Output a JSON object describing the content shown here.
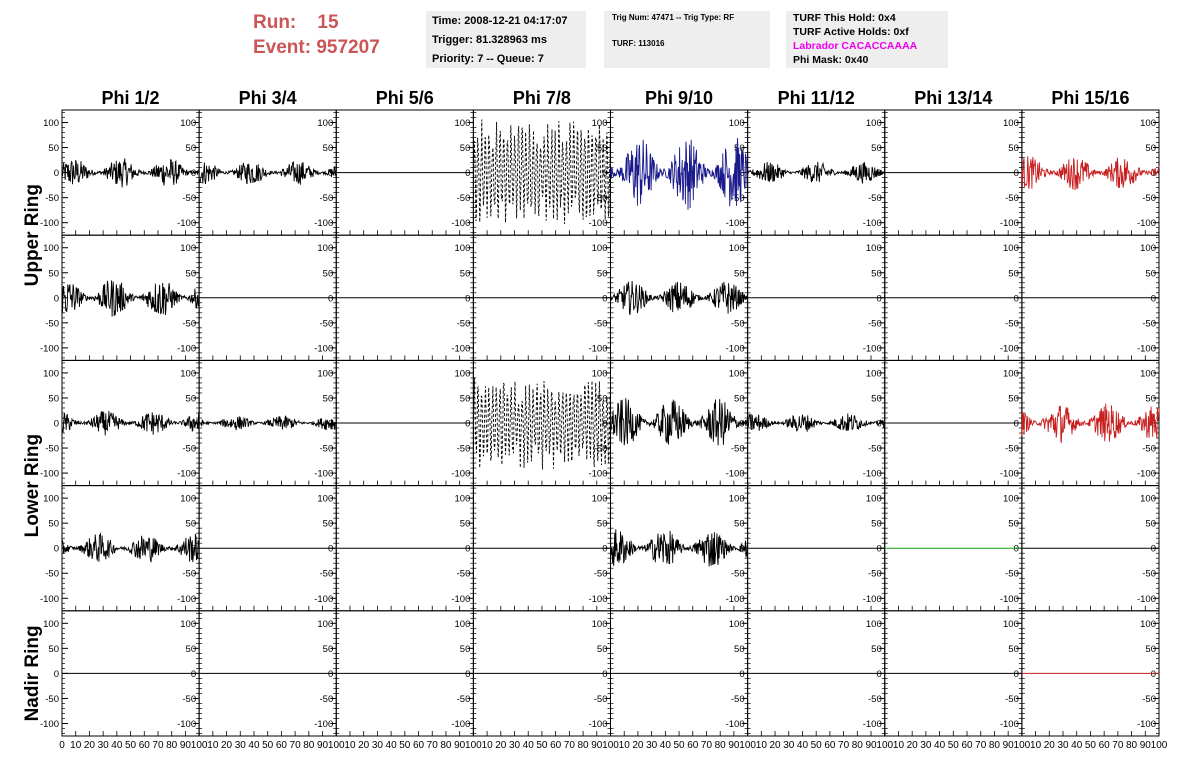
{
  "header": {
    "run_label": "Run:",
    "run_value": "15",
    "event_label": "Event:",
    "event_value": "957207",
    "time": "Time: 2008-12-21 04:17:07",
    "trigger": "Trigger: 81.328963 ms",
    "priority": "Priority: 7 -- Queue: 7",
    "trig_num": "Trig Num: 47471 -- Trig Type: RF",
    "turf": "TURF: 113016",
    "turf_this_hold": "TURF This Hold: 0x4",
    "turf_active_holds": "TURF Active Holds: 0xf",
    "labrador": "Labrador CACACCAAAA",
    "phi_mask": "Phi Mask: 0x40"
  },
  "colors": {
    "header_red": "#cc5555",
    "labrador_magenta": "#ee00ee",
    "trace_black": "#000000",
    "trace_blue": "#1a1a8c",
    "trace_red": "#c82020",
    "trace_green": "#10a010"
  },
  "chart_data": {
    "type": "line",
    "columns": [
      "Phi 1/2",
      "Phi 3/4",
      "Phi 5/6",
      "Phi 7/8",
      "Phi 9/10",
      "Phi 11/12",
      "Phi 13/14",
      "Phi 15/16"
    ],
    "rows": [
      "Upper Ring",
      "Upper Ring",
      "Lower Ring",
      "Lower Ring",
      "Nadir Ring"
    ],
    "row_labels": [
      "Upper Ring",
      "Lower Ring",
      "Nadir Ring"
    ],
    "xlim": [
      0,
      100
    ],
    "ylim": [
      -125,
      125
    ],
    "x_ticks": [
      "0",
      "10",
      "20",
      "30",
      "40",
      "50",
      "60",
      "70",
      "80",
      "90",
      "100"
    ],
    "y_ticks": [
      "100",
      "50",
      "0",
      "-50",
      "-100"
    ],
    "note": "Each panel shows a voltage waveform; amplitude is the approximate envelope in data units",
    "panels": [
      [
        {
          "amp": 30,
          "color": "black",
          "style": "solid"
        },
        {
          "amp": 25,
          "color": "black",
          "style": "solid"
        },
        {
          "amp": 0,
          "color": "black",
          "style": "solid"
        },
        {
          "amp": 110,
          "color": "black",
          "style": "dashed"
        },
        {
          "amp": 75,
          "color": "blue",
          "style": "solid"
        },
        {
          "amp": 22,
          "color": "black",
          "style": "solid"
        },
        {
          "amp": 0,
          "color": "black",
          "style": "solid"
        },
        {
          "amp": 35,
          "color": "red",
          "style": "solid"
        }
      ],
      [
        {
          "amp": 40,
          "color": "black",
          "style": "solid"
        },
        {
          "amp": 0,
          "color": "black",
          "style": "solid"
        },
        {
          "amp": 0,
          "color": "black",
          "style": "solid"
        },
        {
          "amp": 0,
          "color": "black",
          "style": "solid"
        },
        {
          "amp": 35,
          "color": "black",
          "style": "solid"
        },
        {
          "amp": 0,
          "color": "black",
          "style": "solid"
        },
        {
          "amp": 0,
          "color": "black",
          "style": "solid"
        },
        {
          "amp": 0,
          "color": "black",
          "style": "solid"
        }
      ],
      [
        {
          "amp": 25,
          "color": "black",
          "style": "solid"
        },
        {
          "amp": 15,
          "color": "black",
          "style": "solid"
        },
        {
          "amp": 0,
          "color": "black",
          "style": "solid"
        },
        {
          "amp": 95,
          "color": "black",
          "style": "dashed"
        },
        {
          "amp": 50,
          "color": "black",
          "style": "solid"
        },
        {
          "amp": 20,
          "color": "black",
          "style": "solid"
        },
        {
          "amp": 0,
          "color": "black",
          "style": "solid"
        },
        {
          "amp": 40,
          "color": "red",
          "style": "solid"
        }
      ],
      [
        {
          "amp": 30,
          "color": "black",
          "style": "solid"
        },
        {
          "amp": 0,
          "color": "black",
          "style": "solid"
        },
        {
          "amp": 0,
          "color": "black",
          "style": "solid"
        },
        {
          "amp": 0,
          "color": "black",
          "style": "solid"
        },
        {
          "amp": 40,
          "color": "black",
          "style": "solid"
        },
        {
          "amp": 0,
          "color": "black",
          "style": "solid"
        },
        {
          "amp": 0,
          "color": "green",
          "style": "solid"
        },
        {
          "amp": 0,
          "color": "black",
          "style": "solid"
        }
      ],
      [
        {
          "amp": 0,
          "color": "black",
          "style": "solid"
        },
        {
          "amp": 0,
          "color": "black",
          "style": "solid"
        },
        {
          "amp": 0,
          "color": "black",
          "style": "solid"
        },
        {
          "amp": 0,
          "color": "black",
          "style": "solid"
        },
        {
          "amp": 0,
          "color": "black",
          "style": "solid"
        },
        {
          "amp": 0,
          "color": "black",
          "style": "solid"
        },
        {
          "amp": 0,
          "color": "black",
          "style": "solid"
        },
        {
          "amp": 0,
          "color": "red",
          "style": "solid"
        }
      ]
    ]
  }
}
